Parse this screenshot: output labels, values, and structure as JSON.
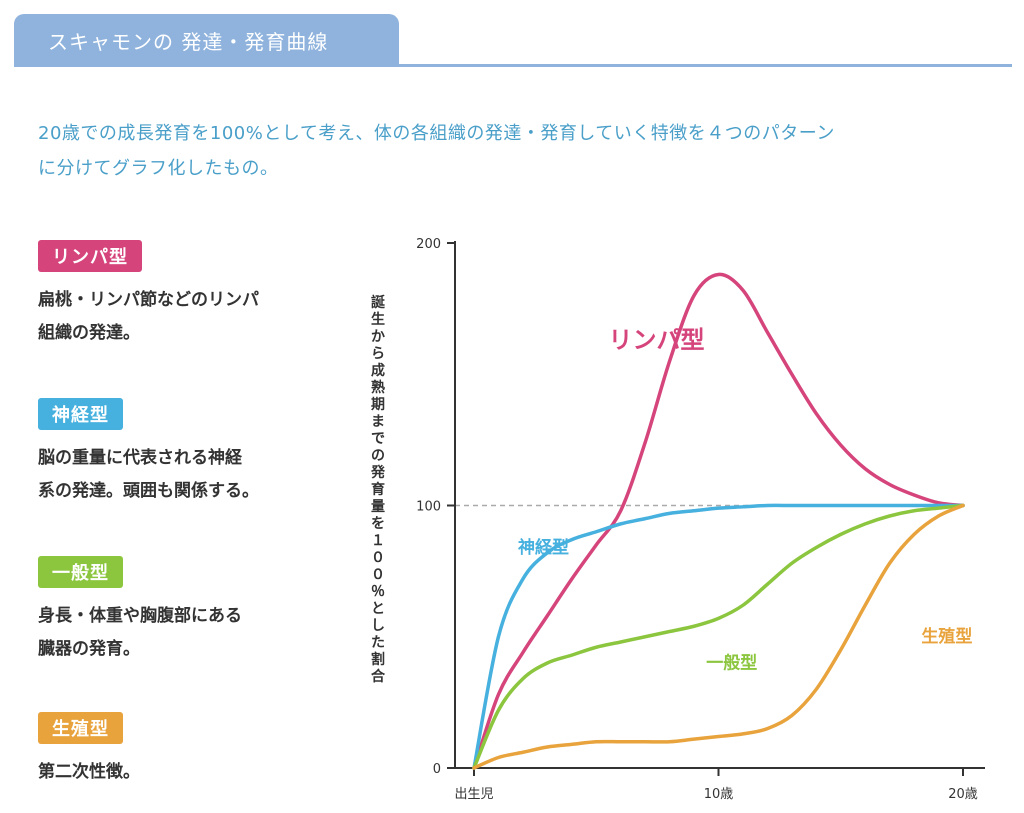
{
  "header": {
    "title": "スキャモンの 発達・発育曲線"
  },
  "intro": {
    "line1": "20歳での成長発育を100%として考え、体の各組織の発達・発育していく特徴を４つのパターン",
    "line2": "に分けてグラフ化したもの。"
  },
  "legend": [
    {
      "label": "リンパ型",
      "color": "#d5457c",
      "desc1": "扁桃・リンパ節などのリンパ",
      "desc2": "組織の発達。"
    },
    {
      "label": "神経型",
      "color": "#46b0de",
      "desc1": "脳の重量に代表される神経",
      "desc2": "系の発達。頭囲も関係する。"
    },
    {
      "label": "一般型",
      "color": "#8cc63f",
      "desc1": "身長・体重や胸腹部にある",
      "desc2": "臓器の発育。"
    },
    {
      "label": "生殖型",
      "color": "#e8a33c",
      "desc1": "第二次性徴。",
      "desc2": ""
    }
  ],
  "chart_data": {
    "type": "line",
    "ylabel": "誕生から成熟期までの発育量を１００％とした割合",
    "ylim": [
      0,
      200
    ],
    "xlim": [
      0,
      20
    ],
    "yticks": [
      "0",
      "100",
      "200"
    ],
    "xticks": [
      {
        "x": 0,
        "label": "出生児"
      },
      {
        "x": 10,
        "label": "10歳"
      },
      {
        "x": 20,
        "label": "20歳"
      }
    ],
    "reference_line": {
      "y": 100,
      "style": "dashed"
    },
    "series": [
      {
        "name": "リンパ型",
        "color": "#d5457c",
        "label_xy": [
          5.5,
          160
        ],
        "x": [
          0,
          1,
          2,
          3,
          4,
          5,
          6,
          7,
          8,
          9,
          10,
          11,
          12,
          13,
          14,
          15,
          16,
          17,
          18,
          19,
          20
        ],
        "y": [
          0,
          28,
          44,
          58,
          72,
          85,
          98,
          124,
          155,
          180,
          188,
          182,
          166,
          150,
          135,
          123,
          114,
          108,
          104,
          101,
          100
        ]
      },
      {
        "name": "神経型",
        "color": "#46b0de",
        "label_xy": [
          1.8,
          82
        ],
        "x": [
          0,
          1,
          2,
          3,
          4,
          5,
          6,
          7,
          8,
          9,
          10,
          11,
          12,
          13,
          14,
          15,
          16,
          17,
          18,
          19,
          20
        ],
        "y": [
          0,
          50,
          72,
          82,
          87,
          90,
          93,
          95,
          97,
          98,
          99,
          99.5,
          100,
          100,
          100,
          100,
          100,
          100,
          100,
          100,
          100
        ]
      },
      {
        "name": "一般型",
        "color": "#8cc63f",
        "label_xy": [
          9.5,
          38
        ],
        "x": [
          0,
          1,
          2,
          3,
          4,
          5,
          6,
          7,
          8,
          9,
          10,
          11,
          12,
          13,
          14,
          15,
          16,
          17,
          18,
          19,
          20
        ],
        "y": [
          0,
          22,
          34,
          40,
          43,
          46,
          48,
          50,
          52,
          54,
          57,
          62,
          70,
          78,
          84,
          89,
          93,
          96,
          98,
          99,
          100
        ]
      },
      {
        "name": "生殖型",
        "color": "#e8a33c",
        "label_xy": [
          18.3,
          48
        ],
        "x": [
          0,
          1,
          2,
          3,
          4,
          5,
          6,
          7,
          8,
          9,
          10,
          11,
          12,
          13,
          14,
          15,
          16,
          17,
          18,
          19,
          20
        ],
        "y": [
          0,
          4,
          6,
          8,
          9,
          10,
          10,
          10,
          10,
          11,
          12,
          13,
          15,
          20,
          30,
          45,
          62,
          78,
          89,
          96,
          100
        ]
      }
    ]
  }
}
